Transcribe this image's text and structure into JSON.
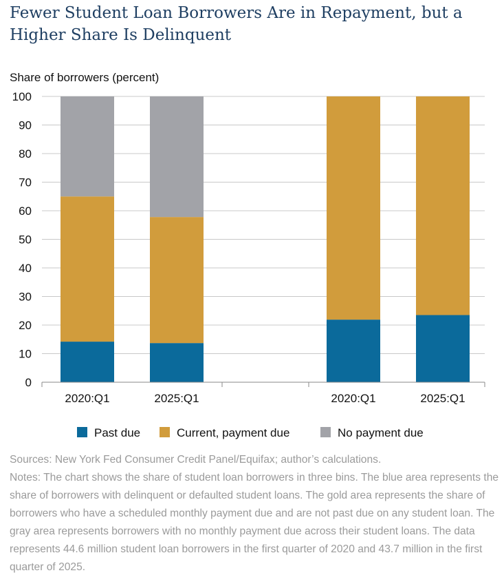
{
  "title": "Fewer Student Loan Borrowers Are in Repayment, but a Higher Share Is Delinquent",
  "sources": "Sources: New York Fed Consumer Credit Panel/Equifax; author’s calculations.",
  "notes": "Notes: The chart shows the share of student loan borrowers in three bins. The blue area represents the share of borrowers with delinquent or defaulted student loans. The gold area represents the share of borrowers who have a scheduled monthly payment due and are not past due on any student loan. The gray area represents borrowers with no monthly payment due across their student loans. The data represents 44.6 million student loan borrowers in the first quarter of 2020 and 43.7 million in the first quarter of 2025.",
  "chart_data": {
    "type": "bar",
    "stacked": true,
    "ylabel": "Share of borrowers (percent)",
    "ylim": [
      0,
      100
    ],
    "yticks": [
      0,
      10,
      20,
      30,
      40,
      50,
      60,
      70,
      80,
      90,
      100
    ],
    "grid": true,
    "legend_position": "bottom",
    "groups": [
      {
        "categories": [
          "2020:Q1",
          "2025:Q1"
        ],
        "series": [
          {
            "name": "Past due",
            "values": [
              14.2,
              13.7
            ]
          },
          {
            "name": "Current, payment due",
            "values": [
              50.8,
              44.1
            ]
          },
          {
            "name": "No payment due",
            "values": [
              35.0,
              42.2
            ]
          }
        ]
      },
      {
        "categories": [
          "2020:Q1",
          "2025:Q1"
        ],
        "series": [
          {
            "name": "Past due",
            "values": [
              21.9,
              23.5
            ]
          },
          {
            "name": "Current, payment due",
            "values": [
              78.1,
              76.5
            ]
          }
        ]
      }
    ],
    "legend": [
      {
        "name": "Past due",
        "color": "#0b6a9b"
      },
      {
        "name": "Current, payment due",
        "color": "#d19c3c"
      },
      {
        "name": "No payment due",
        "color": "#a2a3a8"
      }
    ]
  }
}
